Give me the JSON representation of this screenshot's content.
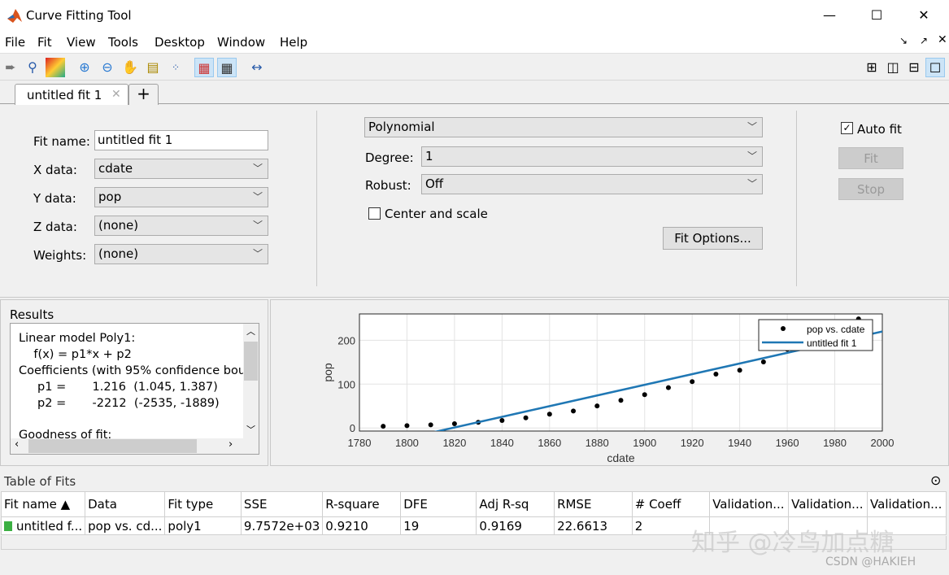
{
  "window": {
    "title": "Curve Fitting Tool",
    "minimize": "—",
    "maximize": "☐",
    "close": "✕"
  },
  "menu": [
    "File",
    "Fit",
    "View",
    "Tools",
    "Desktop",
    "Window",
    "Help"
  ],
  "toolbar": [
    "pan-back-icon",
    "data-icon",
    "surface-colormap-icon",
    "zoom-in-icon",
    "zoom-out-icon",
    "pan-hand-icon",
    "data-cursor-icon",
    "exclude-outliers-icon",
    "legend-toggle-icon",
    "grid-toggle-icon",
    "axes-limits-icon"
  ],
  "tabs": {
    "active": "untitled fit 1",
    "close": "✕",
    "add": "+"
  },
  "settings": {
    "fit_name_label": "Fit name:",
    "fit_name": "untitled fit 1",
    "x_label": "X data:",
    "x_value": "cdate",
    "y_label": "Y data:",
    "y_value": "pop",
    "z_label": "Z data:",
    "z_value": "(none)",
    "w_label": "Weights:",
    "w_value": "(none)",
    "fit_type": "Polynomial",
    "degree_label": "Degree:",
    "degree": "1",
    "robust_label": "Robust:",
    "robust": "Off",
    "center_scale_label": "Center and scale",
    "center_scale": false,
    "fit_options": "Fit Options...",
    "auto_fit_label": "Auto fit",
    "auto_fit": true,
    "fit_button": "Fit",
    "stop_button": "Stop"
  },
  "results": {
    "title": "Results",
    "lines": [
      "Linear model Poly1:",
      "    f(x) = p1*x + p2",
      "Coefficients (with 95% confidence bou",
      "     p1 =       1.216  (1.045, 1.387)",
      "     p2 =       -2212  (-2535, -1889)",
      "",
      "Goodness of fit:"
    ]
  },
  "chart_data": {
    "type": "scatter",
    "xlabel": "cdate",
    "ylabel": "pop",
    "xlim": [
      1780,
      2000
    ],
    "ylim": [
      -7,
      260
    ],
    "xticks": [
      1780,
      1800,
      1820,
      1840,
      1860,
      1880,
      1900,
      1920,
      1940,
      1960,
      1980,
      2000
    ],
    "yticks": [
      0,
      100,
      200
    ],
    "grid": true,
    "legend_placement": "top-right",
    "points": {
      "name": "pop vs. cdate",
      "x": [
        1790,
        1800,
        1810,
        1820,
        1830,
        1840,
        1850,
        1860,
        1870,
        1880,
        1890,
        1900,
        1910,
        1920,
        1930,
        1940,
        1950,
        1960,
        1970,
        1980,
        1990
      ],
      "y": [
        3.9,
        5.3,
        7.2,
        9.6,
        12.9,
        17.1,
        23.2,
        31.4,
        38.6,
        50.2,
        62.9,
        76.0,
        92.0,
        105.7,
        122.8,
        131.7,
        150.7,
        179.3,
        203.2,
        226.5,
        248.7
      ]
    },
    "fit": {
      "name": "untitled fit 1",
      "p1": 1.216,
      "p2": -2212,
      "color": "#1f77b4"
    }
  },
  "table_of_fits": {
    "title": "Table of Fits",
    "columns": [
      "Fit name ▲",
      "Data",
      "Fit type",
      "SSE",
      "R-square",
      "DFE",
      "Adj R-sq",
      "RMSE",
      "# Coeff",
      "Validation...",
      "Validation...",
      "Validation..."
    ],
    "rows": [
      [
        "untitled f...",
        "pop vs. cd...",
        "poly1",
        "9.7572e+03",
        "0.9210",
        "19",
        "0.9169",
        "22.6613",
        "2",
        "",
        "",
        ""
      ]
    ]
  },
  "watermark": "知乎 @冷鸟加点糖",
  "watermark2": "CSDN @HAKIEH"
}
